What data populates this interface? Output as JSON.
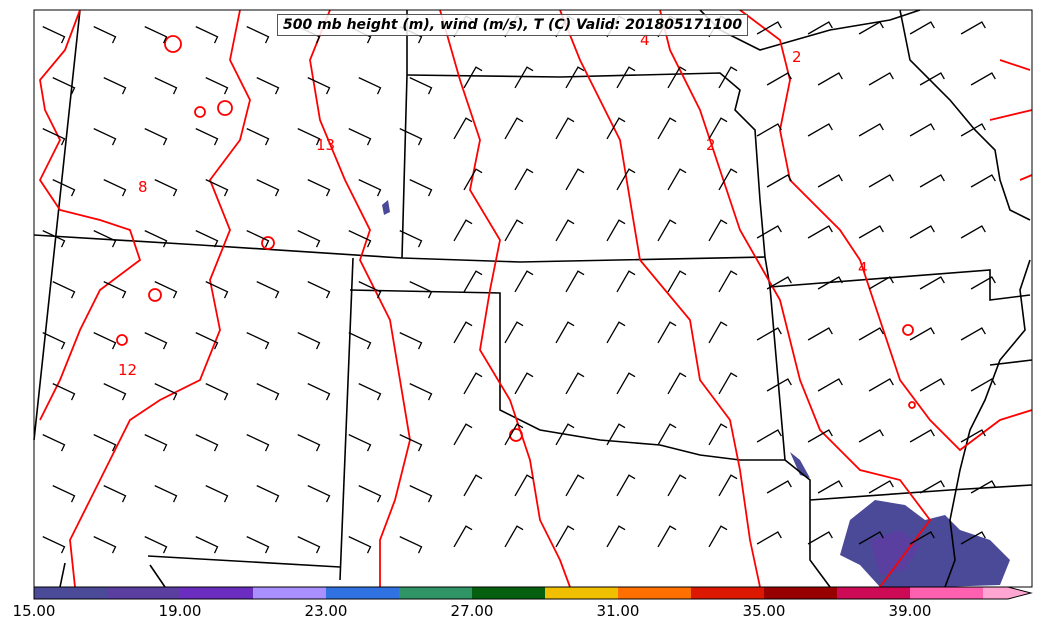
{
  "title": "500 mb height (m), wind (m/s), T (C) Valid: 201805171100",
  "contour_labels": [
    "4",
    "2",
    "2",
    "13",
    "8",
    "12",
    "4"
  ],
  "colorbar": {
    "min": 15,
    "max": 43,
    "step": 2,
    "tick_labels": [
      "15.00",
      "19.00",
      "23.00",
      "27.00",
      "31.00",
      "35.00",
      "39.00"
    ],
    "colors": [
      "#4a4a98",
      "#5a3fa0",
      "#6a2dc0",
      "#aa90ff",
      "#3172e2",
      "#2f9566",
      "#04600e",
      "#f0c000",
      "#ff7000",
      "#dd1800",
      "#980000",
      "#cc0a55",
      "#ff60b0",
      "#ffa6d2"
    ]
  },
  "colors": {
    "contour": "#ff0000",
    "border": "#000000",
    "barb": "#000000"
  }
}
